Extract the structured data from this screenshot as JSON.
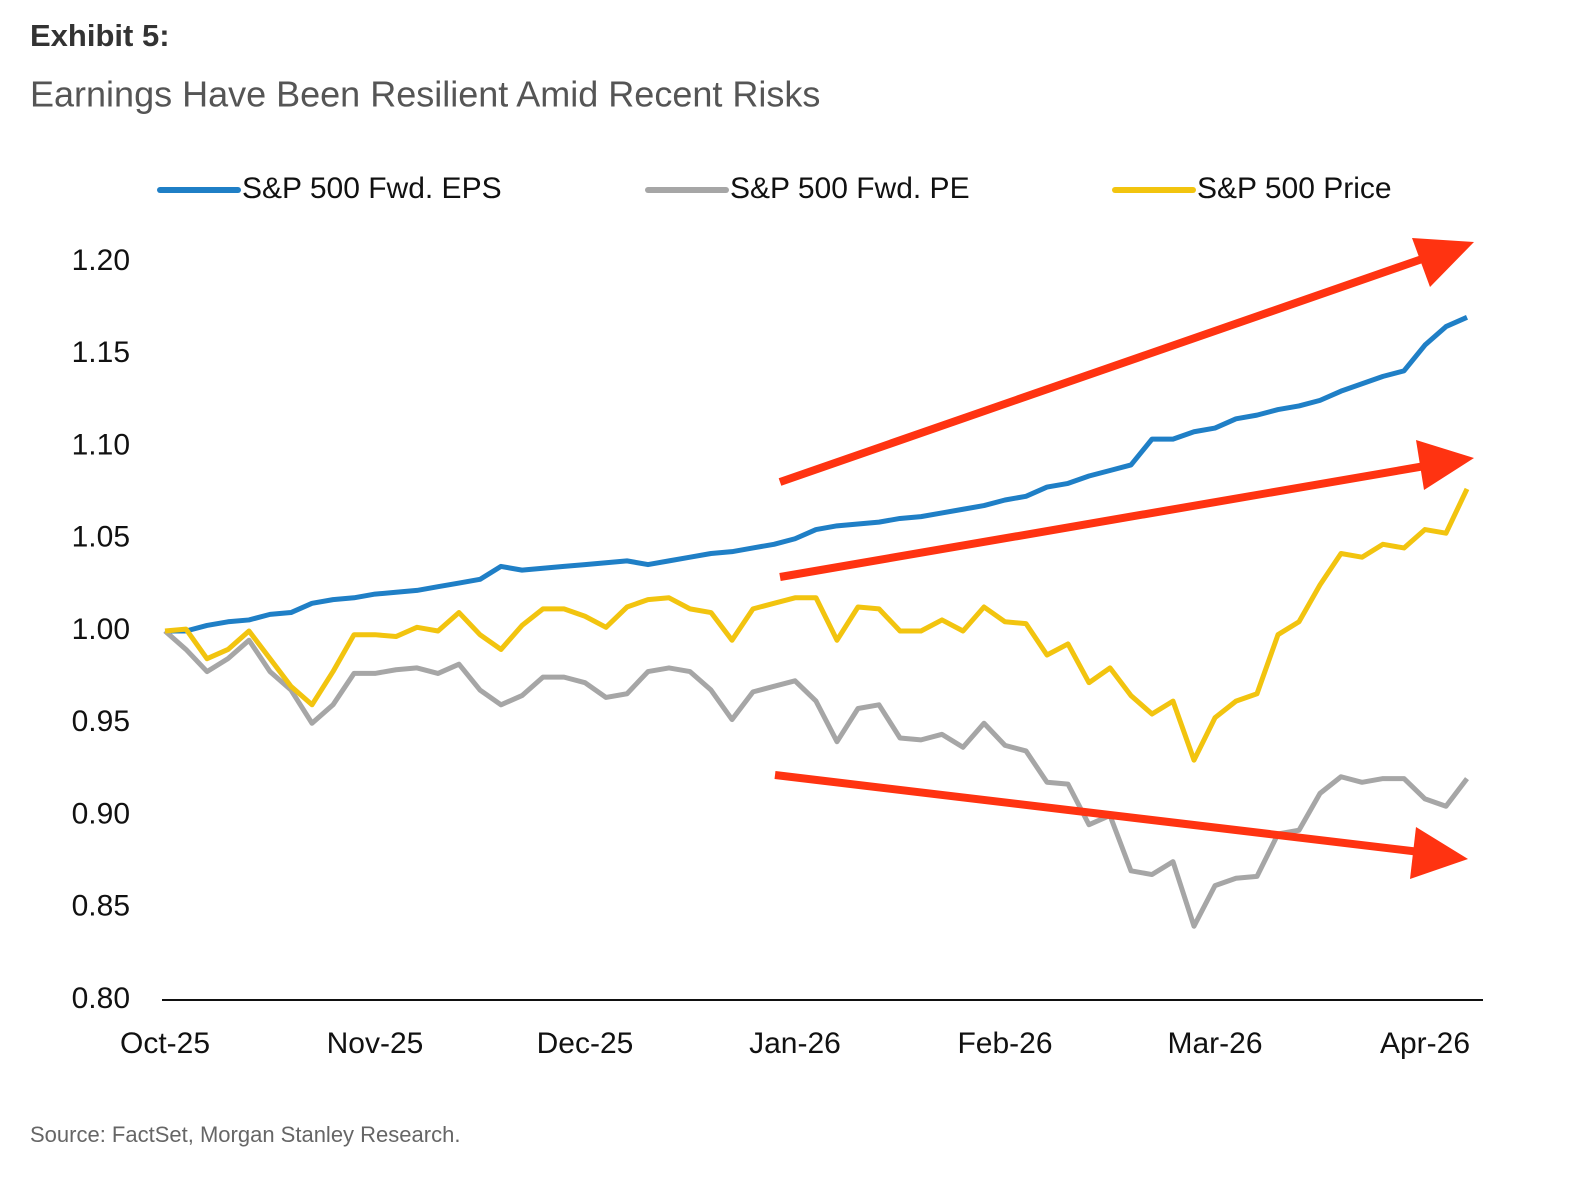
{
  "chart_data": {
    "type": "line",
    "title": "Exhibit 5:",
    "subtitle": "Earnings Have Been Resilient Amid Recent Risks",
    "source": "Source: FactSet, Morgan Stanley Research.",
    "categories": [
      "Oct-25",
      null,
      null,
      null,
      null,
      null,
      null,
      null,
      null,
      null,
      "Nov-25",
      null,
      null,
      null,
      null,
      null,
      null,
      null,
      null,
      null,
      "Dec-25",
      null,
      null,
      null,
      null,
      null,
      null,
      null,
      null,
      null,
      "Jan-26",
      null,
      null,
      null,
      null,
      null,
      null,
      null,
      null,
      null,
      "Feb-26",
      null,
      null,
      null,
      null,
      null,
      null,
      null,
      null,
      null,
      "Mar-26",
      null,
      null,
      null,
      null,
      null,
      null,
      null,
      null,
      null,
      "Apr-26",
      null,
      null
    ],
    "series": [
      {
        "name": "S&P 500 Fwd. EPS",
        "color": "#1f7fc6",
        "values": [
          1.0,
          1.0,
          1.003,
          1.005,
          1.006,
          1.009,
          1.01,
          1.015,
          1.017,
          1.018,
          1.02,
          1.021,
          1.022,
          1.024,
          1.026,
          1.028,
          1.035,
          1.033,
          1.034,
          1.035,
          1.036,
          1.037,
          1.038,
          1.036,
          1.038,
          1.04,
          1.042,
          1.043,
          1.045,
          1.047,
          1.05,
          1.055,
          1.057,
          1.058,
          1.059,
          1.061,
          1.062,
          1.064,
          1.066,
          1.068,
          1.071,
          1.073,
          1.078,
          1.08,
          1.084,
          1.087,
          1.09,
          1.104,
          1.104,
          1.108,
          1.11,
          1.115,
          1.117,
          1.12,
          1.122,
          1.125,
          1.13,
          1.134,
          1.138,
          1.141,
          1.155,
          1.165,
          1.17
        ]
      },
      {
        "name": "S&P 500 Fwd. PE",
        "color": "#a6a6a6",
        "values": [
          1.0,
          0.99,
          0.978,
          0.985,
          0.995,
          0.978,
          0.968,
          0.95,
          0.96,
          0.977,
          0.977,
          0.979,
          0.98,
          0.977,
          0.982,
          0.968,
          0.96,
          0.965,
          0.975,
          0.975,
          0.972,
          0.964,
          0.966,
          0.978,
          0.98,
          0.978,
          0.968,
          0.952,
          0.967,
          0.97,
          0.973,
          0.962,
          0.94,
          0.958,
          0.96,
          0.942,
          0.941,
          0.944,
          0.937,
          0.95,
          0.938,
          0.935,
          0.918,
          0.917,
          0.895,
          0.9,
          0.87,
          0.868,
          0.875,
          0.84,
          0.862,
          0.866,
          0.867,
          0.89,
          0.892,
          0.912,
          0.921,
          0.918,
          0.92,
          0.92,
          0.909,
          0.905,
          0.92
        ]
      },
      {
        "name": "S&P 500 Price",
        "color": "#f2c40f",
        "values": [
          1.0,
          1.001,
          0.985,
          0.99,
          1.0,
          0.985,
          0.97,
          0.96,
          0.978,
          0.998,
          0.998,
          0.997,
          1.002,
          1.0,
          1.01,
          0.998,
          0.99,
          1.003,
          1.012,
          1.012,
          1.008,
          1.002,
          1.013,
          1.017,
          1.018,
          1.012,
          1.01,
          0.995,
          1.012,
          1.015,
          1.018,
          1.018,
          0.995,
          1.013,
          1.012,
          1.0,
          1.0,
          1.006,
          1.0,
          1.013,
          1.005,
          1.004,
          0.987,
          0.993,
          0.972,
          0.98,
          0.965,
          0.955,
          0.962,
          0.93,
          0.953,
          0.962,
          0.966,
          0.998,
          1.005,
          1.025,
          1.042,
          1.04,
          1.047,
          1.045,
          1.055,
          1.053,
          1.077
        ]
      }
    ],
    "ylim": [
      0.8,
      1.2
    ],
    "yticks": [
      {
        "value": 0.8,
        "label": "0.80"
      },
      0.85,
      {
        "value": 0.9,
        "label": "0.90"
      },
      0.95,
      {
        "value": 1.0,
        "label": "1.00"
      },
      1.05,
      {
        "value": 1.1,
        "label": "1.10"
      },
      1.15,
      {
        "value": 1.2,
        "label": "1.20"
      }
    ],
    "grid": false,
    "legend": "top"
  }
}
